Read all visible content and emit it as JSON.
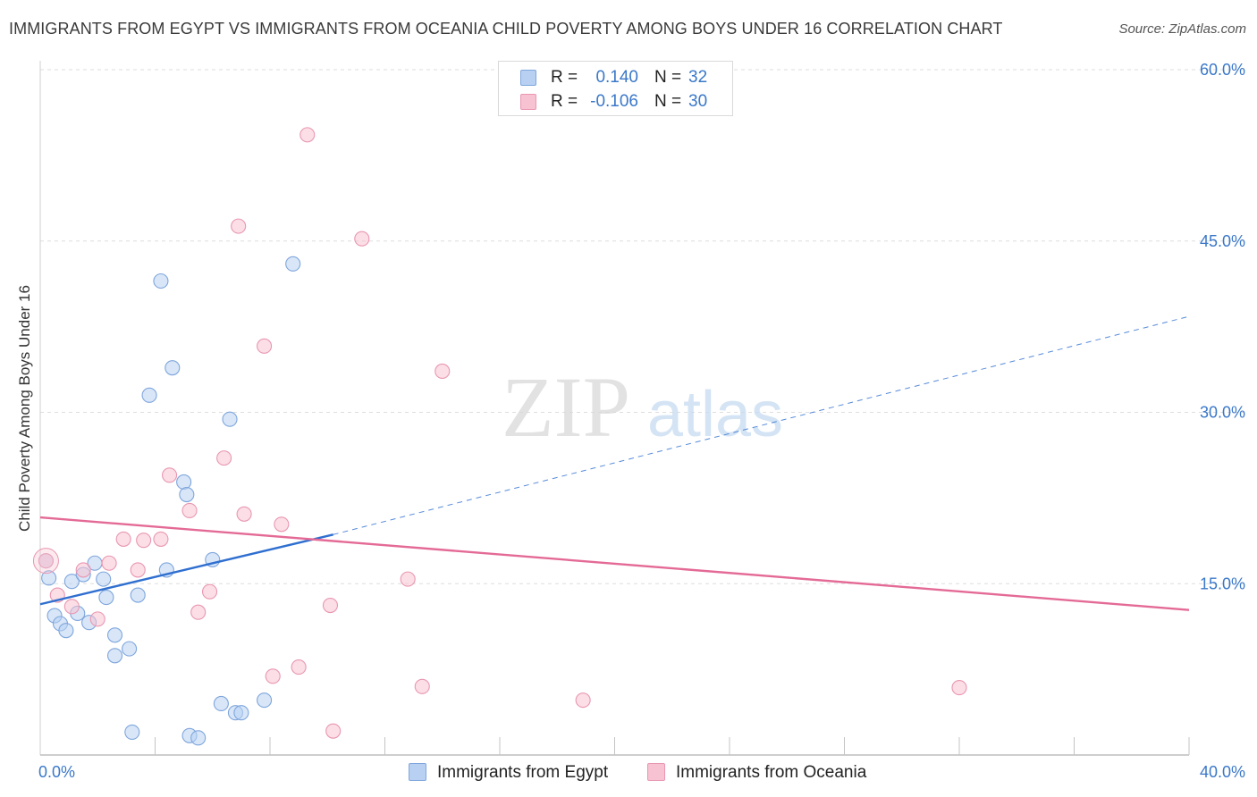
{
  "colors": {
    "egypt_fill": "#b8d1f3",
    "egypt_stroke": "#7fa6dc",
    "egypt_line": "#2f6fd0",
    "oceania_fill": "#f7c2d2",
    "oceania_stroke": "#e997b1",
    "oceania_line": "#e46a96",
    "axis_label": "#3a78c9",
    "grid": "#dedede",
    "watermark_zip": "#d7d7d7",
    "watermark_atlas": "#c6dbf1"
  },
  "watermark": {
    "zip": "ZIP",
    "atlas": "atlas"
  },
  "chart_data": {
    "type": "scatter",
    "title": "IMMIGRANTS FROM EGYPT VS IMMIGRANTS FROM OCEANIA CHILD POVERTY AMONG BOYS UNDER 16 CORRELATION CHART",
    "source": "Source: ZipAtlas.com",
    "xlabel": "",
    "ylabel": "Child Poverty Among Boys Under 16",
    "xlim": [
      0,
      40
    ],
    "ylim": [
      0,
      60
    ],
    "x_tick_labels": [
      {
        "value": 0,
        "label": "0.0%"
      },
      {
        "value": 40,
        "label": "40.0%"
      }
    ],
    "y_tick_labels": [
      {
        "value": 15,
        "label": "15.0%"
      },
      {
        "value": 30,
        "label": "30.0%"
      },
      {
        "value": 45,
        "label": "45.0%"
      },
      {
        "value": 60,
        "label": "60.0%"
      }
    ],
    "x_minor_ticks": [
      4,
      8,
      12,
      16,
      20,
      24,
      28,
      32,
      36
    ],
    "grid": true,
    "legend_position": "bottom",
    "stats_box": {
      "rows": [
        {
          "r_label": "R =",
          "r_value": "0.140",
          "n_label": "N =",
          "n_value": "32"
        },
        {
          "r_label": "R =",
          "r_value": "-0.106",
          "n_label": "N =",
          "n_value": "30"
        }
      ]
    },
    "series": [
      {
        "name": "Immigrants from Egypt",
        "points": [
          [
            0.2,
            17.0
          ],
          [
            0.3,
            15.5
          ],
          [
            0.5,
            12.2
          ],
          [
            0.7,
            11.5
          ],
          [
            0.9,
            10.9
          ],
          [
            1.1,
            15.2
          ],
          [
            1.3,
            12.4
          ],
          [
            1.5,
            15.8
          ],
          [
            1.7,
            11.6
          ],
          [
            1.9,
            16.8
          ],
          [
            2.2,
            15.4
          ],
          [
            2.3,
            13.8
          ],
          [
            2.6,
            10.5
          ],
          [
            2.6,
            8.7
          ],
          [
            3.1,
            9.3
          ],
          [
            3.2,
            2.0
          ],
          [
            3.4,
            14.0
          ],
          [
            3.8,
            31.5
          ],
          [
            4.2,
            41.5
          ],
          [
            4.4,
            16.2
          ],
          [
            4.6,
            33.9
          ],
          [
            5.0,
            23.9
          ],
          [
            5.2,
            1.7
          ],
          [
            5.1,
            22.8
          ],
          [
            5.5,
            1.5
          ],
          [
            6.0,
            17.1
          ],
          [
            6.3,
            4.5
          ],
          [
            6.6,
            29.4
          ],
          [
            6.8,
            3.7
          ],
          [
            7.0,
            3.7
          ],
          [
            7.8,
            4.8
          ],
          [
            8.8,
            43.0
          ]
        ],
        "trend": {
          "x": [
            0,
            10.2
          ],
          "y": [
            13.2,
            19.3
          ],
          "dashed_extension": {
            "x": [
              10.2,
              40
            ],
            "y": [
              19.3,
              38.4
            ]
          }
        }
      },
      {
        "name": "Immigrants from Oceania",
        "points": [
          [
            0.2,
            17.0
          ],
          [
            0.6,
            14.0
          ],
          [
            1.1,
            13.0
          ],
          [
            1.5,
            16.2
          ],
          [
            2.0,
            11.9
          ],
          [
            2.4,
            16.8
          ],
          [
            2.9,
            18.9
          ],
          [
            3.4,
            16.2
          ],
          [
            3.6,
            18.8
          ],
          [
            4.2,
            18.9
          ],
          [
            4.5,
            24.5
          ],
          [
            5.2,
            21.4
          ],
          [
            5.5,
            12.5
          ],
          [
            5.9,
            14.3
          ],
          [
            6.4,
            26.0
          ],
          [
            6.9,
            46.3
          ],
          [
            7.1,
            21.1
          ],
          [
            7.8,
            35.8
          ],
          [
            8.1,
            6.9
          ],
          [
            8.4,
            20.2
          ],
          [
            9.0,
            7.7
          ],
          [
            9.3,
            54.3
          ],
          [
            10.1,
            13.1
          ],
          [
            10.2,
            2.1
          ],
          [
            11.2,
            45.2
          ],
          [
            12.8,
            15.4
          ],
          [
            13.3,
            6.0
          ],
          [
            14.0,
            33.6
          ],
          [
            18.9,
            4.8
          ],
          [
            32.0,
            5.9
          ]
        ],
        "trend": {
          "x": [
            0,
            40
          ],
          "y": [
            20.8,
            12.7
          ]
        }
      }
    ]
  }
}
